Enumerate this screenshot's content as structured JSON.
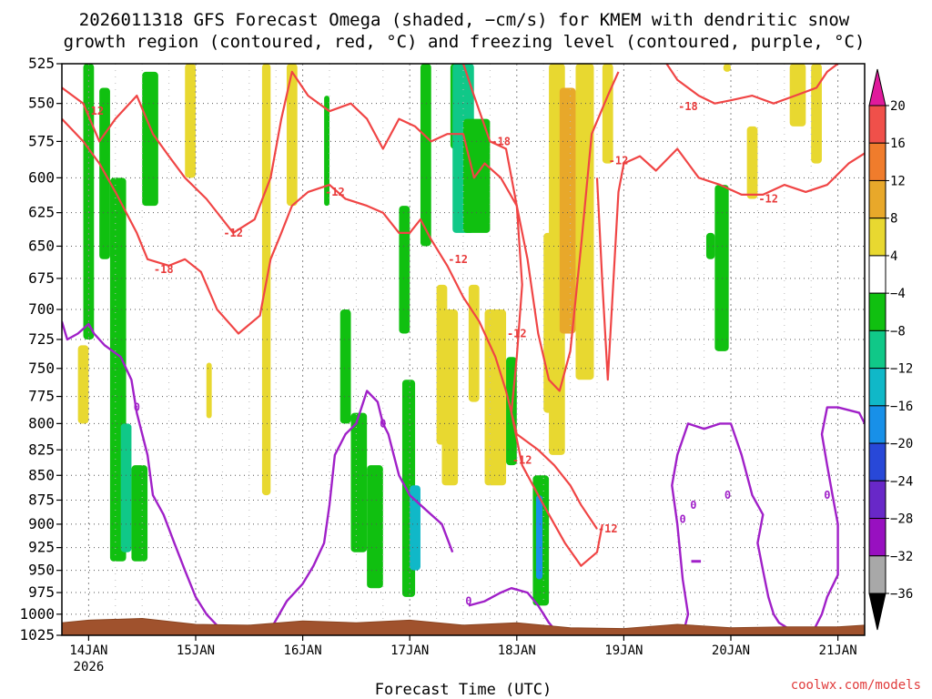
{
  "chart_data": {
    "type": "heatmap",
    "title_line1": "2026011318 GFS Forecast Omega (shaded, −cm/s) for KMEM with dendritic snow",
    "title_line2": "growth region (contoured, red, °C) and freezing level (contoured, purple, °C)",
    "xlabel": "Forecast Time (UTC)",
    "x_ticks": [
      "14JAN",
      "15JAN",
      "16JAN",
      "17JAN",
      "18JAN",
      "19JAN",
      "20JAN",
      "21JAN"
    ],
    "x_year": "2026",
    "x_range_days": [
      13.75,
      21.25
    ],
    "y_ticks": [
      "525",
      "550",
      "575",
      "600",
      "625",
      "650",
      "675",
      "700",
      "725",
      "750",
      "775",
      "800",
      "825",
      "850",
      "875",
      "900",
      "925",
      "950",
      "975",
      "1000",
      "1025"
    ],
    "y_range_hpa": [
      525,
      1025
    ],
    "colorbar": {
      "labels": [
        "20",
        "16",
        "12",
        "8",
        "4",
        "−4",
        "−8",
        "−12",
        "−16",
        "−20",
        "−24",
        "−28",
        "−32",
        "−36"
      ],
      "colors": [
        "#e01a9c",
        "#f0504a",
        "#f07c2c",
        "#e8a82a",
        "#e8d830",
        "#ffffff",
        "#10c010",
        "#10c888",
        "#10b8c8",
        "#1890e8",
        "#2848d8",
        "#6828c8",
        "#9810c0",
        "#a8a8a8",
        "#000000"
      ]
    },
    "contour_labels": {
      "dgz": [
        "-12",
        "-12",
        "-18",
        "-12",
        "-12",
        "-18",
        "-12",
        "-12",
        "-12",
        "-12",
        "-18",
        "-12"
      ],
      "freezing": [
        "0",
        "0",
        "0",
        "0",
        "0",
        "0",
        "0"
      ]
    },
    "shading": [
      {
        "t0": 13.95,
        "t1": 14.05,
        "p0": 525,
        "p1": 725,
        "v": -7
      },
      {
        "t0": 14.1,
        "t1": 14.2,
        "p0": 540,
        "p1": 660,
        "v": -7
      },
      {
        "t0": 14.2,
        "t1": 14.35,
        "p0": 600,
        "p1": 940,
        "v": -7
      },
      {
        "t0": 14.3,
        "t1": 14.4,
        "p0": 800,
        "p1": 930,
        "v": -11
      },
      {
        "t0": 14.4,
        "t1": 14.55,
        "p0": 840,
        "p1": 940,
        "v": -7
      },
      {
        "t0": 14.5,
        "t1": 14.65,
        "p0": 530,
        "p1": 620,
        "v": -7
      },
      {
        "t0": 13.9,
        "t1": 14.0,
        "p0": 730,
        "p1": 800,
        "v": 5
      },
      {
        "t0": 14.9,
        "t1": 15.0,
        "p0": 525,
        "p1": 600,
        "v": 5
      },
      {
        "t0": 15.1,
        "t1": 15.15,
        "p0": 745,
        "p1": 795,
        "v": 5
      },
      {
        "t0": 15.62,
        "t1": 15.7,
        "p0": 525,
        "p1": 870,
        "v": 5
      },
      {
        "t0": 15.85,
        "t1": 15.95,
        "p0": 525,
        "p1": 620,
        "v": 5
      },
      {
        "t0": 16.2,
        "t1": 16.25,
        "p0": 545,
        "p1": 620,
        "v": -7
      },
      {
        "t0": 16.35,
        "t1": 16.45,
        "p0": 700,
        "p1": 800,
        "v": -7
      },
      {
        "t0": 16.45,
        "t1": 16.6,
        "p0": 790,
        "p1": 930,
        "v": -7
      },
      {
        "t0": 16.6,
        "t1": 16.75,
        "p0": 840,
        "p1": 970,
        "v": -7
      },
      {
        "t0": 16.9,
        "t1": 17.0,
        "p0": 620,
        "p1": 720,
        "v": -7
      },
      {
        "t0": 16.93,
        "t1": 17.05,
        "p0": 760,
        "p1": 980,
        "v": -7
      },
      {
        "t0": 17.0,
        "t1": 17.1,
        "p0": 860,
        "p1": 950,
        "v": -14
      },
      {
        "t0": 17.1,
        "t1": 17.2,
        "p0": 525,
        "p1": 650,
        "v": -7
      },
      {
        "t0": 17.25,
        "t1": 17.35,
        "p0": 680,
        "p1": 820,
        "v": 5
      },
      {
        "t0": 17.3,
        "t1": 17.45,
        "p0": 700,
        "p1": 860,
        "v": 5
      },
      {
        "t0": 17.38,
        "t1": 17.45,
        "p0": 525,
        "p1": 580,
        "v": -7
      },
      {
        "t0": 17.4,
        "t1": 17.6,
        "p0": 525,
        "p1": 640,
        "v": -10
      },
      {
        "t0": 17.5,
        "t1": 17.75,
        "p0": 560,
        "p1": 640,
        "v": -7
      },
      {
        "t0": 17.55,
        "t1": 17.65,
        "p0": 680,
        "p1": 780,
        "v": 5
      },
      {
        "t0": 17.7,
        "t1": 17.9,
        "p0": 700,
        "p1": 860,
        "v": 5
      },
      {
        "t0": 17.9,
        "t1": 18.0,
        "p0": 740,
        "p1": 840,
        "v": -7
      },
      {
        "t0": 18.15,
        "t1": 18.3,
        "p0": 850,
        "p1": 990,
        "v": -7
      },
      {
        "t0": 18.18,
        "t1": 18.24,
        "p0": 870,
        "p1": 960,
        "v": -17
      },
      {
        "t0": 18.25,
        "t1": 18.35,
        "p0": 640,
        "p1": 790,
        "v": 5
      },
      {
        "t0": 18.3,
        "t1": 18.45,
        "p0": 525,
        "p1": 830,
        "v": 5
      },
      {
        "t0": 18.4,
        "t1": 18.55,
        "p0": 540,
        "p1": 720,
        "v": 9
      },
      {
        "t0": 18.55,
        "t1": 18.72,
        "p0": 525,
        "p1": 760,
        "v": 5
      },
      {
        "t0": 18.8,
        "t1": 18.9,
        "p0": 525,
        "p1": 590,
        "v": 5
      },
      {
        "t0": 19.85,
        "t1": 19.98,
        "p0": 605,
        "p1": 735,
        "v": -7
      },
      {
        "t0": 19.77,
        "t1": 19.85,
        "p0": 640,
        "p1": 660,
        "v": -7
      },
      {
        "t0": 20.15,
        "t1": 20.25,
        "p0": 565,
        "p1": 615,
        "v": 5
      },
      {
        "t0": 20.55,
        "t1": 20.7,
        "p0": 525,
        "p1": 565,
        "v": 5
      },
      {
        "t0": 20.75,
        "t1": 20.85,
        "p0": 525,
        "p1": 590,
        "v": 5
      },
      {
        "t0": 19.93,
        "t1": 20.0,
        "p0": 525,
        "p1": 530,
        "v": 5
      }
    ],
    "dgz_contours": [
      [
        [
          13.75,
          540
        ],
        [
          13.95,
          550
        ],
        [
          14.1,
          575
        ],
        [
          14.25,
          560
        ],
        [
          14.45,
          545
        ],
        [
          14.6,
          570
        ],
        [
          14.75,
          585
        ],
        [
          14.9,
          600
        ],
        [
          15.1,
          615
        ],
        [
          15.35,
          640
        ],
        [
          15.55,
          630
        ],
        [
          15.7,
          600
        ],
        [
          15.8,
          560
        ],
        [
          15.9,
          530
        ],
        [
          16.05,
          545
        ],
        [
          16.25,
          555
        ],
        [
          16.45,
          550
        ],
        [
          16.6,
          560
        ],
        [
          16.75,
          580
        ],
        [
          16.9,
          560
        ],
        [
          17.05,
          565
        ],
        [
          17.2,
          575
        ],
        [
          17.35,
          570
        ],
        [
          17.5,
          570
        ],
        [
          17.6,
          600
        ],
        [
          17.7,
          590
        ],
        [
          17.85,
          600
        ],
        [
          18.0,
          620
        ],
        [
          18.1,
          660
        ],
        [
          18.2,
          720
        ],
        [
          18.3,
          760
        ],
        [
          18.4,
          770
        ],
        [
          18.5,
          735
        ],
        [
          18.6,
          650
        ],
        [
          18.7,
          570
        ],
        [
          18.85,
          545
        ],
        [
          18.95,
          530
        ]
      ],
      [
        [
          13.75,
          560
        ],
        [
          13.95,
          575
        ],
        [
          14.1,
          590
        ],
        [
          14.25,
          610
        ],
        [
          14.45,
          640
        ],
        [
          14.55,
          660
        ],
        [
          14.75,
          665
        ],
        [
          14.9,
          660
        ],
        [
          15.05,
          670
        ],
        [
          15.2,
          700
        ],
        [
          15.4,
          720
        ],
        [
          15.6,
          705
        ],
        [
          15.7,
          660
        ],
        [
          15.8,
          640
        ],
        [
          15.9,
          620
        ],
        [
          16.05,
          610
        ],
        [
          16.25,
          605
        ],
        [
          16.4,
          615
        ],
        [
          16.6,
          620
        ],
        [
          16.75,
          625
        ],
        [
          16.9,
          640
        ],
        [
          17.0,
          640
        ],
        [
          17.1,
          630
        ],
        [
          17.2,
          645
        ],
        [
          17.35,
          665
        ],
        [
          17.5,
          690
        ],
        [
          17.65,
          710
        ],
        [
          17.8,
          740
        ],
        [
          17.9,
          770
        ],
        [
          18.0,
          810
        ],
        [
          18.2,
          825
        ],
        [
          18.35,
          840
        ],
        [
          18.5,
          860
        ],
        [
          18.6,
          880
        ],
        [
          18.75,
          905
        ]
      ],
      [
        [
          17.5,
          525
        ],
        [
          17.6,
          545
        ],
        [
          17.75,
          575
        ],
        [
          17.9,
          580
        ],
        [
          18.0,
          620
        ],
        [
          18.05,
          680
        ],
        [
          18.0,
          740
        ],
        [
          17.95,
          790
        ],
        [
          18.05,
          840
        ],
        [
          18.25,
          880
        ],
        [
          18.45,
          920
        ],
        [
          18.6,
          945
        ],
        [
          18.75,
          930
        ],
        [
          18.8,
          900
        ]
      ],
      [
        [
          18.75,
          600
        ],
        [
          18.8,
          680
        ],
        [
          18.85,
          760
        ],
        [
          18.95,
          610
        ],
        [
          19.0,
          590
        ],
        [
          19.15,
          585
        ],
        [
          19.3,
          595
        ],
        [
          19.5,
          580
        ],
        [
          19.7,
          600
        ],
        [
          19.9,
          605
        ],
        [
          20.1,
          612
        ],
        [
          20.3,
          612
        ],
        [
          20.5,
          605
        ],
        [
          20.7,
          610
        ],
        [
          20.9,
          605
        ],
        [
          21.1,
          590
        ],
        [
          21.25,
          583
        ]
      ],
      [
        [
          19.4,
          525
        ],
        [
          19.5,
          535
        ],
        [
          19.7,
          545
        ],
        [
          19.85,
          550
        ],
        [
          20.0,
          548
        ],
        [
          20.2,
          545
        ],
        [
          20.4,
          550
        ],
        [
          20.6,
          545
        ],
        [
          20.8,
          540
        ],
        [
          20.9,
          530
        ],
        [
          21.0,
          525
        ]
      ]
    ],
    "freezing_contours": [
      [
        [
          13.75,
          710
        ],
        [
          13.8,
          725
        ],
        [
          13.9,
          720
        ],
        [
          14.0,
          712
        ],
        [
          14.05,
          720
        ],
        [
          14.15,
          730
        ],
        [
          14.3,
          740
        ],
        [
          14.4,
          760
        ],
        [
          14.45,
          790
        ],
        [
          14.55,
          830
        ],
        [
          14.6,
          870
        ],
        [
          14.7,
          890
        ],
        [
          14.8,
          920
        ],
        [
          14.9,
          950
        ],
        [
          15.0,
          980
        ],
        [
          15.1,
          1000
        ],
        [
          15.25,
          1020
        ]
      ],
      [
        [
          15.7,
          1018
        ],
        [
          15.85,
          985
        ],
        [
          16.0,
          965
        ],
        [
          16.1,
          945
        ],
        [
          16.2,
          920
        ],
        [
          16.25,
          880
        ],
        [
          16.3,
          830
        ],
        [
          16.4,
          810
        ],
        [
          16.5,
          800
        ],
        [
          16.6,
          770
        ],
        [
          16.7,
          780
        ],
        [
          16.75,
          800
        ],
        [
          16.8,
          810
        ],
        [
          16.85,
          830
        ],
        [
          16.9,
          850
        ],
        [
          17.0,
          870
        ],
        [
          17.1,
          880
        ],
        [
          17.2,
          890
        ],
        [
          17.3,
          900
        ],
        [
          17.4,
          930
        ]
      ],
      [
        [
          17.55,
          990
        ],
        [
          17.7,
          985
        ],
        [
          17.85,
          975
        ],
        [
          17.95,
          970
        ],
        [
          18.1,
          975
        ],
        [
          18.2,
          990
        ],
        [
          18.3,
          1010
        ],
        [
          18.4,
          1025
        ]
      ],
      [
        [
          19.55,
          1025
        ],
        [
          19.6,
          1000
        ],
        [
          19.55,
          960
        ],
        [
          19.5,
          900
        ],
        [
          19.45,
          860
        ],
        [
          19.5,
          830
        ],
        [
          19.6,
          800
        ],
        [
          19.75,
          805
        ],
        [
          19.9,
          800
        ],
        [
          20.0,
          800
        ],
        [
          20.1,
          830
        ],
        [
          20.2,
          870
        ],
        [
          20.3,
          890
        ],
        [
          20.25,
          920
        ],
        [
          20.3,
          950
        ],
        [
          20.35,
          980
        ],
        [
          20.4,
          1000
        ],
        [
          20.45,
          1010
        ],
        [
          20.55,
          1018
        ]
      ],
      [
        [
          20.75,
          1025
        ],
        [
          20.85,
          1000
        ],
        [
          20.9,
          980
        ],
        [
          21.0,
          955
        ],
        [
          21.0,
          930
        ],
        [
          21.0,
          900
        ],
        [
          20.95,
          870
        ],
        [
          20.9,
          840
        ],
        [
          20.85,
          810
        ],
        [
          20.9,
          785
        ],
        [
          21.0,
          785
        ],
        [
          21.2,
          790
        ],
        [
          21.25,
          800
        ]
      ]
    ],
    "terrain_surface_hpa": [
      [
        13.75,
        1010
      ],
      [
        14.0,
        1007
      ],
      [
        14.5,
        1005
      ],
      [
        15.0,
        1012
      ],
      [
        15.5,
        1013
      ],
      [
        16.0,
        1008
      ],
      [
        16.5,
        1010
      ],
      [
        17.0,
        1007
      ],
      [
        17.5,
        1013
      ],
      [
        18.0,
        1010
      ],
      [
        18.5,
        1016
      ],
      [
        19.0,
        1017
      ],
      [
        19.5,
        1012
      ],
      [
        20.0,
        1016
      ],
      [
        20.5,
        1015
      ],
      [
        21.0,
        1015
      ],
      [
        21.25,
        1013
      ]
    ],
    "credit": "coolwx.com/models"
  }
}
